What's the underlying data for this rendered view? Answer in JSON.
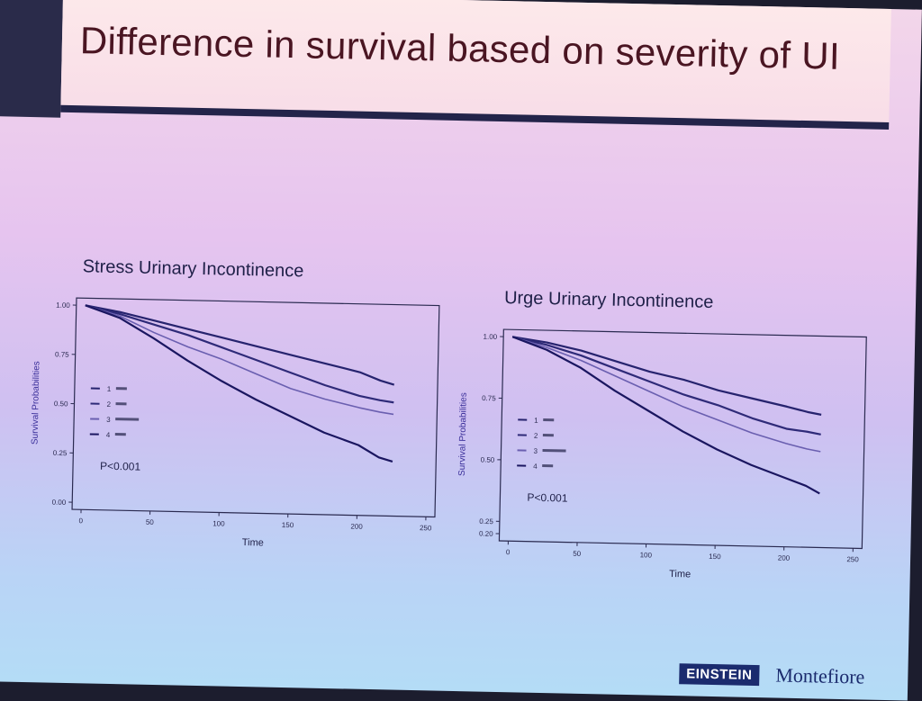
{
  "slide": {
    "title": "Difference in survival based on severity of UI",
    "logos": {
      "einstein": "EINSTEIN",
      "montefiore": "Montefiore"
    }
  },
  "chart_data": [
    {
      "type": "line",
      "title": "Stress Urinary Incontinence",
      "xlabel": "Time",
      "ylabel": "Survival Probabilities",
      "xlim": [
        0,
        250
      ],
      "ylim": [
        0,
        1
      ],
      "xticks": [
        "0",
        "50",
        "100",
        "150",
        "200",
        "250"
      ],
      "yticks": [
        "0.00",
        "0.25",
        "0.50",
        "0.75",
        "1.00"
      ],
      "annotation": "P<0.001",
      "legend": [
        "1",
        "2",
        "3",
        "4"
      ],
      "series": [
        {
          "name": "1",
          "x": [
            0,
            25,
            50,
            75,
            100,
            125,
            150,
            175,
            200,
            215,
            225
          ],
          "y": [
            1.0,
            0.97,
            0.93,
            0.89,
            0.85,
            0.81,
            0.77,
            0.73,
            0.69,
            0.65,
            0.63
          ]
        },
        {
          "name": "2",
          "x": [
            0,
            25,
            50,
            75,
            100,
            125,
            150,
            175,
            200,
            215,
            225
          ],
          "y": [
            1.0,
            0.96,
            0.91,
            0.86,
            0.8,
            0.74,
            0.68,
            0.62,
            0.57,
            0.55,
            0.54
          ]
        },
        {
          "name": "3",
          "x": [
            0,
            25,
            50,
            75,
            100,
            125,
            150,
            175,
            200,
            215,
            225
          ],
          "y": [
            1.0,
            0.95,
            0.87,
            0.8,
            0.74,
            0.67,
            0.6,
            0.55,
            0.51,
            0.49,
            0.48
          ]
        },
        {
          "name": "4",
          "x": [
            0,
            25,
            50,
            75,
            100,
            125,
            150,
            175,
            200,
            215,
            225
          ],
          "y": [
            1.0,
            0.94,
            0.84,
            0.73,
            0.63,
            0.54,
            0.46,
            0.38,
            0.32,
            0.26,
            0.24
          ]
        }
      ]
    },
    {
      "type": "line",
      "title": "Urge Urinary Incontinence",
      "xlabel": "Time",
      "ylabel": "Survival Probabilities",
      "xlim": [
        0,
        250
      ],
      "ylim": [
        0.2,
        1
      ],
      "xticks": [
        "0",
        "50",
        "100",
        "150",
        "200",
        "250"
      ],
      "yticks": [
        "0.25",
        "0.50",
        "0.75",
        "1.00"
      ],
      "ylim_label_bottom": "0.20",
      "annotation": "P<0.001",
      "legend": [
        "1",
        "2",
        "3",
        "4"
      ],
      "series": [
        {
          "name": "1",
          "x": [
            0,
            25,
            50,
            75,
            100,
            125,
            150,
            175,
            200,
            215,
            225
          ],
          "y": [
            1.0,
            0.98,
            0.95,
            0.91,
            0.87,
            0.84,
            0.8,
            0.77,
            0.74,
            0.72,
            0.71
          ]
        },
        {
          "name": "2",
          "x": [
            0,
            25,
            50,
            75,
            100,
            125,
            150,
            175,
            200,
            215,
            225
          ],
          "y": [
            1.0,
            0.97,
            0.93,
            0.88,
            0.83,
            0.78,
            0.74,
            0.69,
            0.65,
            0.64,
            0.63
          ]
        },
        {
          "name": "3",
          "x": [
            0,
            25,
            50,
            75,
            100,
            125,
            150,
            175,
            200,
            215,
            225
          ],
          "y": [
            1.0,
            0.96,
            0.91,
            0.85,
            0.79,
            0.73,
            0.68,
            0.63,
            0.59,
            0.57,
            0.56
          ]
        },
        {
          "name": "4",
          "x": [
            0,
            25,
            50,
            75,
            100,
            125,
            150,
            175,
            200,
            215,
            225
          ],
          "y": [
            1.0,
            0.95,
            0.88,
            0.79,
            0.71,
            0.63,
            0.56,
            0.5,
            0.45,
            0.42,
            0.39
          ]
        }
      ]
    }
  ],
  "colors": {
    "series": [
      "#26236e",
      "#2e2a78",
      "#6a5fb0",
      "#1a1660"
    ],
    "axis": "#2a2a50"
  }
}
